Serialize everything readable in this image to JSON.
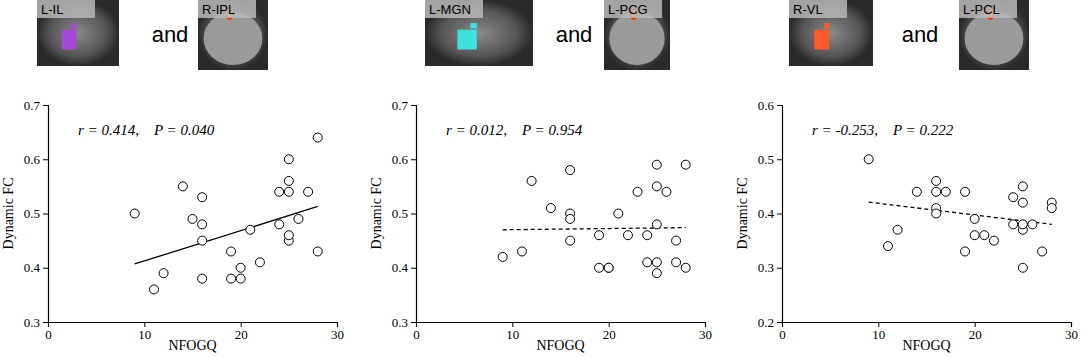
{
  "chart_data": [
    {
      "type": "scatter",
      "x_label": "NFOGQ",
      "y_label": "Dynamic FC",
      "annotation": "r = 0.414,    P = 0.040",
      "images": [
        "L-IL",
        "R-IPL"
      ],
      "connector": "and",
      "marker": "circle",
      "x": [
        9,
        12,
        11,
        14,
        15,
        16,
        16,
        16,
        16,
        19,
        19,
        20,
        20,
        21,
        22,
        24,
        24,
        25,
        25,
        25,
        25,
        25,
        26,
        27,
        28,
        28
      ],
      "values": [
        0.5,
        0.39,
        0.36,
        0.55,
        0.49,
        0.53,
        0.48,
        0.45,
        0.38,
        0.43,
        0.38,
        0.38,
        0.4,
        0.47,
        0.41,
        0.54,
        0.48,
        0.6,
        0.56,
        0.54,
        0.45,
        0.46,
        0.49,
        0.54,
        0.64,
        0.43
      ],
      "fit": {
        "x": [
          9,
          28
        ],
        "values": [
          0.407,
          0.513
        ],
        "line_style": "solid"
      },
      "xlim": [
        0,
        30
      ],
      "xticks": [
        0,
        10,
        20,
        30
      ],
      "ylim": [
        0.3,
        0.7
      ],
      "yticks": [
        0.3,
        0.4,
        0.5,
        0.6,
        0.7
      ]
    },
    {
      "type": "scatter",
      "x_label": "NFOGQ",
      "y_label": "Dynamic FC",
      "annotation": "r = 0.012,    P = 0.954",
      "images": [
        "L-MGN",
        "L-PCG"
      ],
      "connector": "and",
      "marker": "circle",
      "x": [
        9,
        11,
        12,
        14,
        16,
        16,
        16,
        16,
        19,
        19,
        20,
        20,
        21,
        22,
        23,
        24,
        24,
        25,
        25,
        25,
        25,
        25,
        26,
        27,
        27,
        28,
        28
      ],
      "values": [
        0.42,
        0.43,
        0.56,
        0.51,
        0.58,
        0.5,
        0.49,
        0.45,
        0.46,
        0.4,
        0.4,
        0.4,
        0.5,
        0.46,
        0.54,
        0.46,
        0.41,
        0.59,
        0.55,
        0.48,
        0.41,
        0.39,
        0.54,
        0.45,
        0.41,
        0.59,
        0.4
      ],
      "fit": {
        "x": [
          9,
          28
        ],
        "values": [
          0.47,
          0.474
        ],
        "line_style": "dashed"
      },
      "xlim": [
        0,
        30
      ],
      "xticks": [
        0,
        10,
        20,
        30
      ],
      "ylim": [
        0.3,
        0.7
      ],
      "yticks": [
        0.3,
        0.4,
        0.5,
        0.6,
        0.7
      ]
    },
    {
      "type": "scatter",
      "x_label": "NFOGQ",
      "y_label": "Dynamic FC",
      "annotation": "r = -0.253,    P = 0.222",
      "images": [
        "R-VL",
        "L-PCL"
      ],
      "connector": "and",
      "marker": "circle",
      "x": [
        9,
        11,
        12,
        14,
        16,
        16,
        16,
        16,
        17,
        19,
        19,
        20,
        20,
        21,
        22,
        24,
        24,
        25,
        25,
        25,
        25,
        25,
        26,
        27,
        28,
        28
      ],
      "values": [
        0.5,
        0.34,
        0.37,
        0.44,
        0.46,
        0.44,
        0.41,
        0.4,
        0.44,
        0.33,
        0.44,
        0.36,
        0.39,
        0.36,
        0.35,
        0.43,
        0.38,
        0.45,
        0.42,
        0.37,
        0.38,
        0.3,
        0.38,
        0.33,
        0.42,
        0.41
      ],
      "fit": {
        "x": [
          9,
          28
        ],
        "values": [
          0.421,
          0.38
        ],
        "line_style": "dashed"
      },
      "xlim": [
        0,
        30
      ],
      "xticks": [
        0,
        10,
        20,
        30
      ],
      "ylim": [
        0.2,
        0.6
      ],
      "yticks": [
        0.2,
        0.3,
        0.4,
        0.5,
        0.6
      ]
    }
  ]
}
